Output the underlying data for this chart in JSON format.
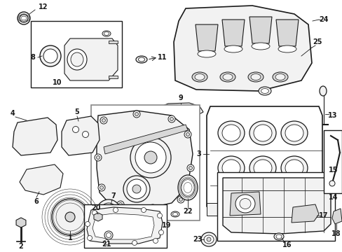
{
  "background_color": "#ffffff",
  "line_color": "#1a1a1a",
  "fig_width": 4.89,
  "fig_height": 3.6,
  "dpi": 100,
  "gray_box": "#808080",
  "part_fill": "#f2f2f2",
  "dark_fill": "#d8d8d8"
}
